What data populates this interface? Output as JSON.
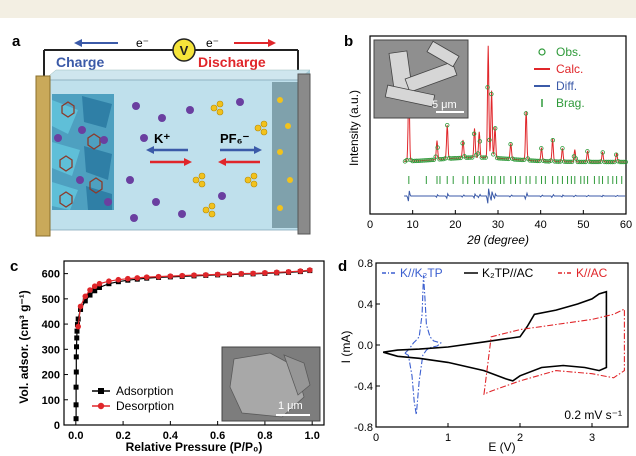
{
  "figure": {
    "panel_a": {
      "label": "a",
      "electron_left": "e⁻",
      "electron_right": "e⁻",
      "meter": "V",
      "charge_label": "Charge",
      "discharge_label": "Discharge",
      "cation_label": "K⁺",
      "anion_label": "PF₆⁻"
    },
    "panel_b": {
      "label": "b",
      "scale_bar": "5 μm"
    },
    "panel_c": {
      "label": "c",
      "scale_bar": "1 μm"
    },
    "panel_d": {
      "label": "d",
      "scan_rate": "0.2 mV s⁻¹"
    }
  },
  "colors": {
    "charge_blue": "#3b5aa8",
    "discharge_red": "#e0262a",
    "obs_green": "#2f9a3a",
    "k2tp_blue": "#3b5fd0"
  },
  "chart_data": [
    {
      "type": "line",
      "panel": "b",
      "xlabel": "2θ (degree)",
      "ylabel": "Intensity (a.u.)",
      "xlim": [
        0,
        60
      ],
      "xticks": [
        0,
        10,
        20,
        30,
        40,
        50,
        60
      ],
      "legend": [
        "Obs.",
        "Calc.",
        "Diff.",
        "Brag."
      ],
      "legend_position": "top-right",
      "peaks": [
        {
          "x": 9.1,
          "y": 70
        },
        {
          "x": 15.7,
          "y": 17
        },
        {
          "x": 18.1,
          "y": 30
        },
        {
          "x": 21.8,
          "y": 16
        },
        {
          "x": 24.5,
          "y": 26
        },
        {
          "x": 25.6,
          "y": 23
        },
        {
          "x": 27.7,
          "y": 100
        },
        {
          "x": 28.5,
          "y": 60
        },
        {
          "x": 29.3,
          "y": 28
        },
        {
          "x": 33.0,
          "y": 14
        },
        {
          "x": 36.6,
          "y": 44
        },
        {
          "x": 40.2,
          "y": 12
        },
        {
          "x": 42.8,
          "y": 20
        },
        {
          "x": 45.1,
          "y": 12
        },
        {
          "x": 48.0,
          "y": 11
        },
        {
          "x": 51.0,
          "y": 10
        },
        {
          "x": 54.5,
          "y": 9
        },
        {
          "x": 57.8,
          "y": 8
        }
      ],
      "bragg_positions": [
        9.1,
        13.2,
        15.7,
        16.4,
        18.1,
        19.5,
        21.8,
        22.9,
        24.5,
        25.6,
        26.5,
        27.7,
        28.5,
        29.3,
        30.6,
        31.4,
        33.0,
        34.1,
        35.2,
        36.6,
        37.5,
        38.9,
        40.2,
        41.1,
        42.8,
        44.0,
        45.1,
        46.3,
        47.2,
        48.0,
        49.4,
        50.2,
        51.0,
        52.6,
        53.7,
        54.5,
        55.8,
        56.9,
        57.8,
        59.0
      ]
    },
    {
      "type": "line",
      "panel": "c",
      "xlabel": "Relative Pressure (P/P₀)",
      "ylabel": "Vol. adsor. (cm³ g⁻¹)",
      "xlim": [
        -0.05,
        1.05
      ],
      "ylim": [
        0,
        650
      ],
      "xticks": [
        0.0,
        0.2,
        0.4,
        0.6,
        0.8,
        1.0
      ],
      "yticks": [
        0,
        100,
        200,
        300,
        400,
        500,
        600
      ],
      "legend_position": "bottom-left",
      "series": [
        {
          "name": "Adsorption",
          "color": "#000000",
          "x": [
            0.001,
            0.001,
            0.001,
            0.002,
            0.002,
            0.003,
            0.004,
            0.005,
            0.007,
            0.01,
            0.02,
            0.04,
            0.06,
            0.08,
            0.1,
            0.14,
            0.18,
            0.22,
            0.26,
            0.3,
            0.35,
            0.4,
            0.45,
            0.5,
            0.55,
            0.6,
            0.65,
            0.7,
            0.75,
            0.8,
            0.85,
            0.9,
            0.95,
            0.99
          ],
          "y": [
            25,
            80,
            150,
            210,
            270,
            310,
            345,
            372,
            398,
            420,
            458,
            492,
            515,
            532,
            545,
            560,
            568,
            574,
            578,
            582,
            585,
            587,
            589,
            591,
            593,
            595,
            596,
            598,
            599,
            601,
            603,
            605,
            608,
            612
          ]
        },
        {
          "name": "Desorption",
          "color": "#e0262a",
          "x": [
            0.01,
            0.02,
            0.04,
            0.06,
            0.08,
            0.1,
            0.14,
            0.18,
            0.22,
            0.26,
            0.3,
            0.35,
            0.4,
            0.45,
            0.5,
            0.55,
            0.6,
            0.65,
            0.7,
            0.75,
            0.8,
            0.85,
            0.9,
            0.95,
            0.99
          ],
          "y": [
            390,
            470,
            510,
            535,
            550,
            560,
            570,
            576,
            580,
            583,
            586,
            588,
            590,
            592,
            594,
            595,
            597,
            598,
            600,
            601,
            603,
            605,
            607,
            610,
            614
          ]
        }
      ]
    },
    {
      "type": "line",
      "panel": "d",
      "xlabel": "E (V)",
      "ylabel": "I (mA)",
      "xlim": [
        0,
        3.5
      ],
      "ylim": [
        -0.8,
        0.8
      ],
      "xticks": [
        0,
        1,
        2,
        3
      ],
      "yticks": [
        -0.8,
        -0.4,
        0.0,
        0.4,
        0.8
      ],
      "legend_position": "top",
      "series": [
        {
          "name": "K//K₂TP",
          "color": "#3b5fd0",
          "style": "dashdot",
          "x": [
            0.4,
            0.45,
            0.5,
            0.53,
            0.56,
            0.6,
            0.65,
            0.7,
            0.74,
            0.78,
            0.85,
            0.9,
            0.8,
            0.75,
            0.7,
            0.68,
            0.66,
            0.64,
            0.6,
            0.55,
            0.52,
            0.5,
            0.48,
            0.46,
            0.43,
            0.4
          ],
          "y": [
            -0.08,
            -0.1,
            -0.3,
            -0.55,
            -0.68,
            -0.35,
            -0.1,
            -0.05,
            -0.03,
            -0.02,
            -0.01,
            0.02,
            0.04,
            0.08,
            0.2,
            0.45,
            0.68,
            0.3,
            0.08,
            0.04,
            0.02,
            0.0,
            -0.02,
            -0.04,
            -0.06,
            -0.08
          ]
        },
        {
          "name": "K₂TP//AC",
          "color": "#000000",
          "style": "solid",
          "x": [
            0.1,
            0.3,
            0.6,
            1.0,
            1.5,
            2.0,
            2.1,
            2.2,
            2.5,
            2.8,
            3.0,
            3.1,
            3.2,
            3.2,
            3.1,
            2.9,
            2.6,
            2.3,
            2.0,
            1.9,
            1.8,
            1.5,
            1.0,
            0.6,
            0.3,
            0.1
          ],
          "y": [
            -0.07,
            -0.05,
            -0.04,
            -0.02,
            0.03,
            0.08,
            0.18,
            0.3,
            0.34,
            0.4,
            0.45,
            0.5,
            0.52,
            -0.22,
            -0.25,
            -0.22,
            -0.2,
            -0.22,
            -0.3,
            -0.35,
            -0.33,
            -0.25,
            -0.17,
            -0.13,
            -0.11,
            -0.07
          ]
        },
        {
          "name": "K//AC",
          "color": "#e0262a",
          "style": "dashdot",
          "x": [
            1.5,
            1.55,
            1.6,
            2.0,
            2.5,
            3.0,
            3.3,
            3.45,
            3.45,
            3.3,
            3.0,
            2.5,
            2.0,
            1.6,
            1.5
          ],
          "y": [
            -0.48,
            -0.2,
            0.08,
            0.15,
            0.2,
            0.25,
            0.3,
            0.35,
            -0.25,
            -0.32,
            -0.28,
            -0.25,
            -0.35,
            -0.45,
            -0.48
          ]
        }
      ]
    }
  ]
}
